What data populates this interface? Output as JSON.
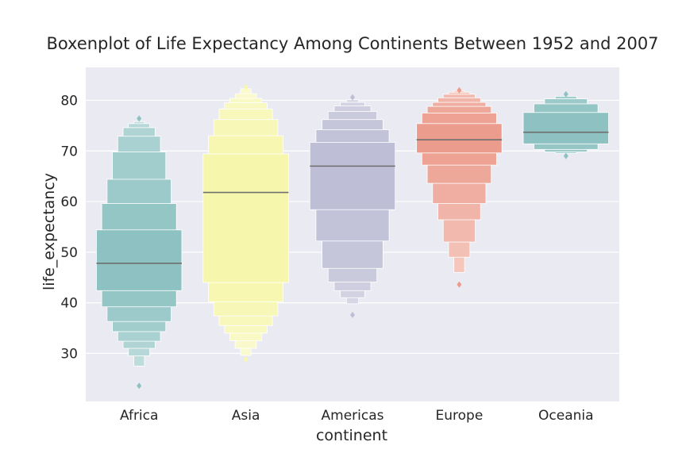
{
  "chart_data": {
    "type": "boxen",
    "title": "Boxenplot of Life Expectancy Among Continents Between 1952 and 2007",
    "xlabel": "continent",
    "ylabel": "life_expectancy",
    "ylim": [
      20.5,
      86.5
    ],
    "yticks": [
      30,
      40,
      50,
      60,
      70,
      80
    ],
    "grid": true,
    "categories": [
      "Africa",
      "Asia",
      "Americas",
      "Europe",
      "Oceania"
    ],
    "colors": [
      "#8ec2c2",
      "#f6f6ad",
      "#bebed6",
      "#ec9c8c",
      "#8ec2c2"
    ],
    "series": [
      {
        "category": "Africa",
        "median": 47.8,
        "boxes": [
          [
            42.4,
            54.4
          ],
          [
            39.2,
            59.6
          ],
          [
            36.3,
            64.4
          ],
          [
            34.3,
            69.8
          ],
          [
            32.4,
            72.9
          ],
          [
            31.0,
            74.6
          ],
          [
            29.5,
            75.4
          ],
          [
            27.5,
            75.8
          ]
        ],
        "outliers": [
          23.6,
          76.4
        ]
      },
      {
        "category": "Asia",
        "median": 61.8,
        "boxes": [
          [
            44.0,
            69.4
          ],
          [
            40.2,
            73.0
          ],
          [
            37.4,
            76.2
          ],
          [
            35.5,
            78.3
          ],
          [
            34.0,
            79.5
          ],
          [
            32.5,
            80.4
          ],
          [
            31.0,
            81.3
          ],
          [
            29.6,
            82.3
          ]
        ],
        "outliers": [
          28.8,
          82.6
        ]
      },
      {
        "category": "Americas",
        "median": 67.0,
        "boxes": [
          [
            58.4,
            71.7
          ],
          [
            52.2,
            74.2
          ],
          [
            46.8,
            76.2
          ],
          [
            44.1,
            77.8
          ],
          [
            42.4,
            78.9
          ],
          [
            41.0,
            79.6
          ],
          [
            39.8,
            80.1
          ]
        ],
        "outliers": [
          37.6,
          80.6
        ]
      },
      {
        "category": "Europe",
        "median": 72.2,
        "boxes": [
          [
            69.6,
            75.4
          ],
          [
            67.2,
            77.5
          ],
          [
            63.6,
            78.8
          ],
          [
            59.6,
            79.6
          ],
          [
            56.4,
            80.5
          ],
          [
            52.0,
            81.2
          ],
          [
            49.0,
            81.6
          ],
          [
            46.0,
            81.9
          ]
        ],
        "outliers": [
          43.6,
          82.0
        ]
      },
      {
        "category": "Oceania",
        "median": 73.7,
        "boxes": [
          [
            71.4,
            77.6
          ],
          [
            70.3,
            79.3
          ],
          [
            69.8,
            80.3
          ],
          [
            69.5,
            80.8
          ]
        ],
        "outliers": [
          69.0,
          81.2
        ]
      }
    ]
  }
}
